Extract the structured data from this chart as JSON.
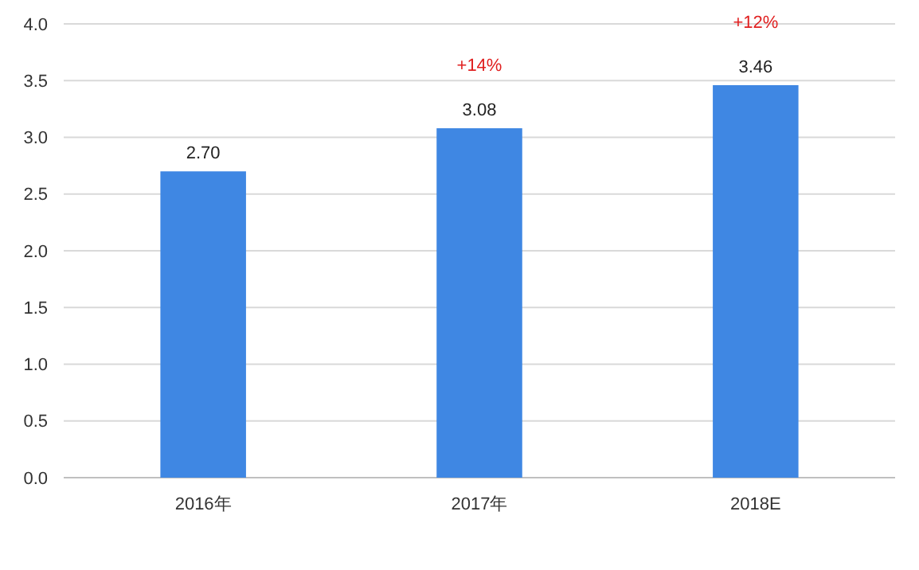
{
  "chart_data": {
    "type": "bar",
    "categories": [
      "2016年",
      "2017年",
      "2018E"
    ],
    "values": [
      2.7,
      3.08,
      3.46
    ],
    "value_labels": [
      "2.70",
      "3.08",
      "3.46"
    ],
    "color": "#3f87e3",
    "ylim": [
      0,
      4
    ],
    "yticks": [
      {
        "value": 0,
        "label": "0.0"
      },
      {
        "value": 0.5,
        "label": "0.5"
      },
      {
        "value": 1,
        "label": "1.0"
      },
      {
        "value": 1.5,
        "label": "1.5"
      },
      {
        "value": 2,
        "label": "2.0"
      },
      {
        "value": 2.5,
        "label": "2.5"
      },
      {
        "value": 3,
        "label": "3.0"
      },
      {
        "value": 3.5,
        "label": "3.5"
      },
      {
        "value": 4,
        "label": "4.0"
      }
    ],
    "grid": "y",
    "annotations": [
      "+14%",
      "+12%"
    ]
  }
}
